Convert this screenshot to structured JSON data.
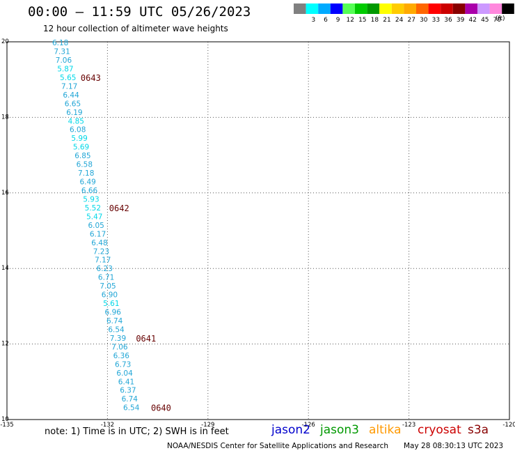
{
  "title": "00:00 – 11:59 UTC 05/26/2023",
  "subtitle": "12 hour collection of altimeter wave heights",
  "note": "note:  1) Time is in UTC;  2) SWH is in feet",
  "footer": {
    "source": "NOAA/NESDIS Center for Satellite Applications and Research",
    "timestamp": "May 28 08:30:13 UTC 2023"
  },
  "satellites": [
    {
      "name": "jason2",
      "color": "#0000cc"
    },
    {
      "name": "jason3",
      "color": "#009900"
    },
    {
      "name": "altika",
      "color": "#ff9900"
    },
    {
      "name": "cryosat",
      "color": "#cc0000"
    },
    {
      "name": "s3a",
      "color": "#880000"
    }
  ],
  "color_legend": {
    "unit": "(ft)",
    "bins": [
      {
        "label": "",
        "color": "#808080"
      },
      {
        "label": "3",
        "color": "#00ffff"
      },
      {
        "label": "6",
        "color": "#00aaff"
      },
      {
        "label": "9",
        "color": "#0000ff"
      },
      {
        "label": "12",
        "color": "#55ff55"
      },
      {
        "label": "15",
        "color": "#00cc00"
      },
      {
        "label": "18",
        "color": "#009900"
      },
      {
        "label": "21",
        "color": "#ffff00"
      },
      {
        "label": "24",
        "color": "#ffcc00"
      },
      {
        "label": "27",
        "color": "#ffaa00"
      },
      {
        "label": "30",
        "color": "#ff6600"
      },
      {
        "label": "33",
        "color": "#ff0000"
      },
      {
        "label": "36",
        "color": "#cc0000"
      },
      {
        "label": "39",
        "color": "#880000"
      },
      {
        "label": "42",
        "color": "#aa00aa"
      },
      {
        "label": "45",
        "color": "#cc99ff"
      },
      {
        "label": "70",
        "color": "#ff88dd"
      },
      {
        "label": "",
        "color": "#000000"
      }
    ]
  },
  "chart_data": {
    "type": "scatter",
    "xlim": [
      -135,
      -120
    ],
    "ylim": [
      10,
      20
    ],
    "x_ticks": [
      {
        "value": -135,
        "label": "-135"
      },
      {
        "value": -132,
        "label": "-132"
      },
      {
        "value": -129,
        "label": "-129"
      },
      {
        "value": -126,
        "label": "-126"
      },
      {
        "value": -123,
        "label": "-123"
      },
      {
        "value": -120,
        "label": "-120"
      }
    ],
    "y_ticks": [
      {
        "value": 20,
        "label": "20"
      },
      {
        "value": 18,
        "label": "18"
      },
      {
        "value": 16,
        "label": "16"
      },
      {
        "value": 14,
        "label": "14"
      },
      {
        "value": 12,
        "label": "12"
      },
      {
        "value": 10,
        "label": "10"
      }
    ],
    "grid": "dotted",
    "low_color": "#00d8e8",
    "high_color": "#22a6d6",
    "points": [
      {
        "lon": -133.65,
        "lat": 19.98,
        "swh": "6.18"
      },
      {
        "lon": -133.6,
        "lat": 19.75,
        "swh": "7.31"
      },
      {
        "lon": -133.55,
        "lat": 19.52,
        "swh": "7.06"
      },
      {
        "lon": -133.5,
        "lat": 19.29,
        "swh": "5.87"
      },
      {
        "lon": -133.42,
        "lat": 19.06,
        "swh": "5.65"
      },
      {
        "lon": -133.38,
        "lat": 18.83,
        "swh": "7.17"
      },
      {
        "lon": -133.33,
        "lat": 18.6,
        "swh": "6.44"
      },
      {
        "lon": -133.28,
        "lat": 18.37,
        "swh": "6.65"
      },
      {
        "lon": -133.23,
        "lat": 18.14,
        "swh": "6.19"
      },
      {
        "lon": -133.18,
        "lat": 17.91,
        "swh": "4.85"
      },
      {
        "lon": -133.13,
        "lat": 17.68,
        "swh": "6.08"
      },
      {
        "lon": -133.08,
        "lat": 17.45,
        "swh": "5.99"
      },
      {
        "lon": -133.03,
        "lat": 17.22,
        "swh": "5.69"
      },
      {
        "lon": -132.98,
        "lat": 16.99,
        "swh": "6.85"
      },
      {
        "lon": -132.93,
        "lat": 16.76,
        "swh": "6.58"
      },
      {
        "lon": -132.88,
        "lat": 16.53,
        "swh": "7.18"
      },
      {
        "lon": -132.83,
        "lat": 16.3,
        "swh": "6.49"
      },
      {
        "lon": -132.78,
        "lat": 16.07,
        "swh": "6.66"
      },
      {
        "lon": -132.73,
        "lat": 15.84,
        "swh": "5.93"
      },
      {
        "lon": -132.68,
        "lat": 15.61,
        "swh": "5.52"
      },
      {
        "lon": -132.63,
        "lat": 15.38,
        "swh": "5.47"
      },
      {
        "lon": -132.58,
        "lat": 15.15,
        "swh": "6.05"
      },
      {
        "lon": -132.53,
        "lat": 14.92,
        "swh": "6.17"
      },
      {
        "lon": -132.48,
        "lat": 14.69,
        "swh": "6.48"
      },
      {
        "lon": -132.43,
        "lat": 14.46,
        "swh": "7.23"
      },
      {
        "lon": -132.38,
        "lat": 14.23,
        "swh": "7.17"
      },
      {
        "lon": -132.33,
        "lat": 14.0,
        "swh": "6.23"
      },
      {
        "lon": -132.28,
        "lat": 13.77,
        "swh": "6.71"
      },
      {
        "lon": -132.23,
        "lat": 13.54,
        "swh": "7.05"
      },
      {
        "lon": -132.18,
        "lat": 13.31,
        "swh": "6.90"
      },
      {
        "lon": -132.13,
        "lat": 13.08,
        "swh": "5.61"
      },
      {
        "lon": -132.08,
        "lat": 12.85,
        "swh": "6.96"
      },
      {
        "lon": -132.03,
        "lat": 12.62,
        "swh": "6.74"
      },
      {
        "lon": -131.98,
        "lat": 12.39,
        "swh": "6.54"
      },
      {
        "lon": -131.93,
        "lat": 12.16,
        "swh": "7.39"
      },
      {
        "lon": -131.88,
        "lat": 11.93,
        "swh": "7.06"
      },
      {
        "lon": -131.83,
        "lat": 11.7,
        "swh": "6.36"
      },
      {
        "lon": -131.78,
        "lat": 11.47,
        "swh": "6.73"
      },
      {
        "lon": -131.73,
        "lat": 11.24,
        "swh": "6.04"
      },
      {
        "lon": -131.68,
        "lat": 11.01,
        "swh": "6.41"
      },
      {
        "lon": -131.63,
        "lat": 10.78,
        "swh": "6.37"
      },
      {
        "lon": -131.58,
        "lat": 10.55,
        "swh": "6.74"
      },
      {
        "lon": -131.53,
        "lat": 10.32,
        "swh": "6.54"
      }
    ],
    "time_labels": [
      {
        "lon": -132.8,
        "lat": 19.06,
        "label": "0643"
      },
      {
        "lon": -131.95,
        "lat": 15.61,
        "label": "0642"
      },
      {
        "lon": -131.15,
        "lat": 12.16,
        "label": "0641"
      },
      {
        "lon": -130.7,
        "lat": 10.32,
        "label": "0640"
      }
    ],
    "time_label_color": "#660000"
  }
}
